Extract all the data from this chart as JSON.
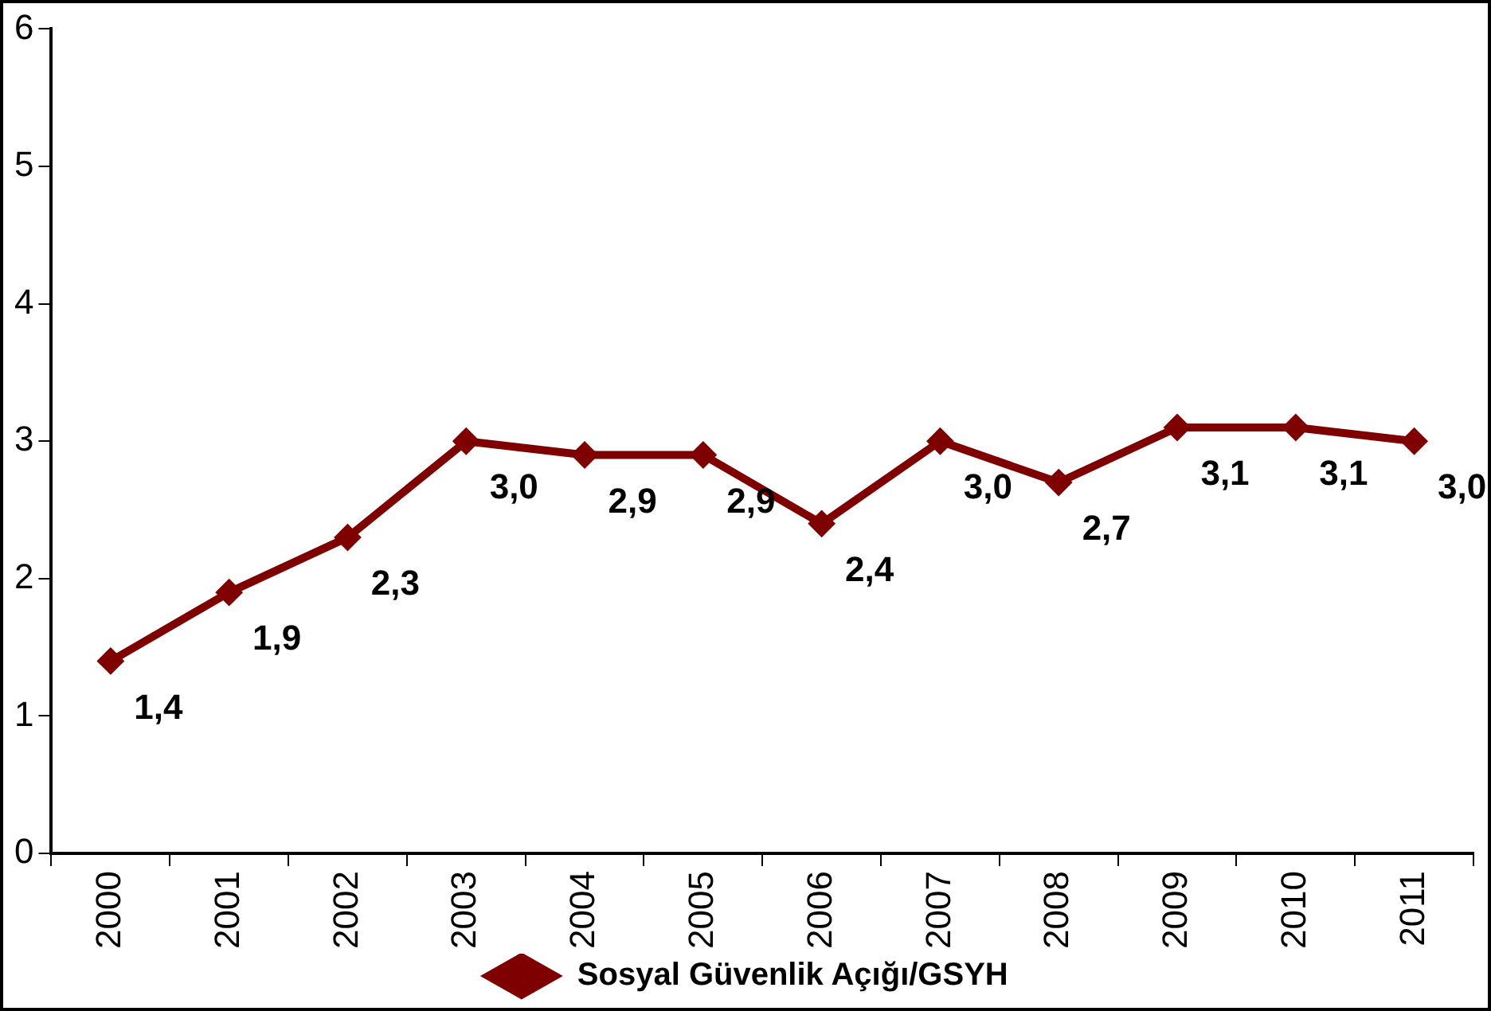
{
  "chart_data": {
    "type": "line",
    "categories": [
      "2000",
      "2001",
      "2002",
      "2003",
      "2004",
      "2005",
      "2006",
      "2007",
      "2008",
      "2009",
      "2010",
      "2011"
    ],
    "series": [
      {
        "name": "Sosyal Güvenlik Açığı/GSYH",
        "color": "#7f0000",
        "values": [
          1.4,
          1.9,
          2.3,
          3.0,
          2.9,
          2.9,
          2.4,
          3.0,
          2.7,
          3.1,
          3.1,
          3.0
        ],
        "value_labels": [
          "1,4",
          "1,9",
          "2,3",
          "3,0",
          "2,9",
          "2,9",
          "2,4",
          "3,0",
          "2,7",
          "3,1",
          "3,1",
          "3,0"
        ]
      }
    ],
    "ylim": [
      0,
      6
    ],
    "yticks": [
      0,
      1,
      2,
      3,
      4,
      5,
      6
    ],
    "legend": "bottom",
    "marker": "diamond",
    "line_style": "solid"
  }
}
